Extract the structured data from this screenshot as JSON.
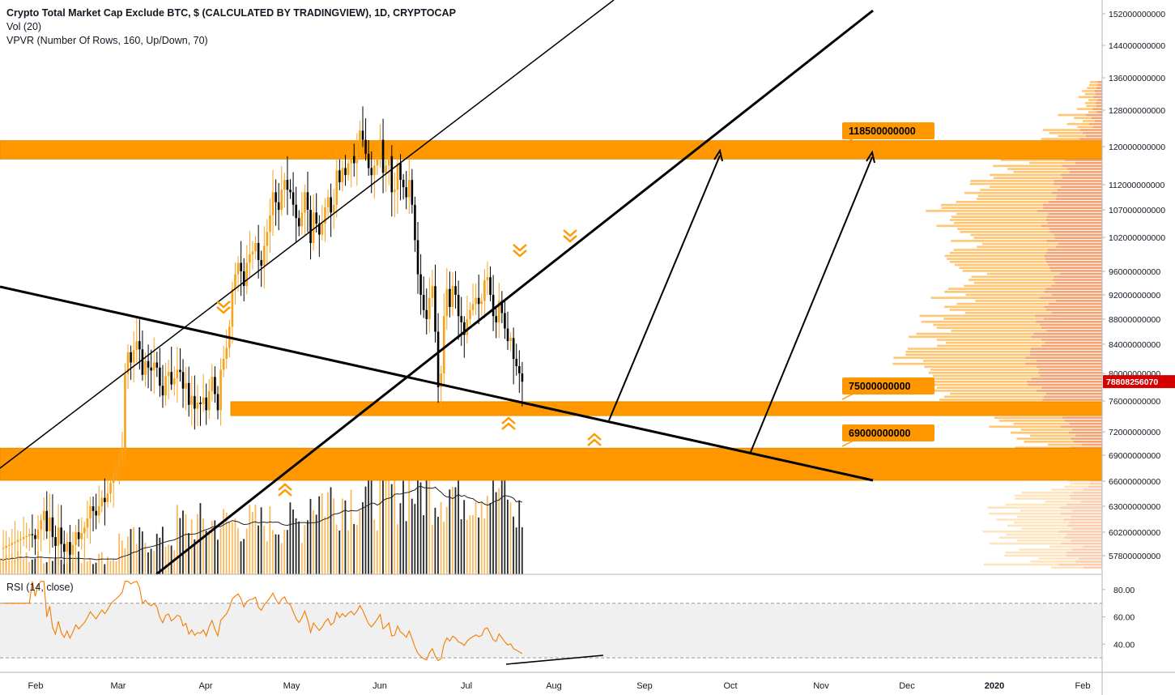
{
  "header": {
    "title": "Crypto Total Market Cap Exclude BTC, $ (CALCULATED BY TRADINGVIEW), 1D, CRYPTOCAP",
    "volume_indicator": "Vol (20)",
    "vpvr_indicator": "VPVR (Number Of Rows, 160, Up/Down, 70)",
    "rsi_indicator": "RSI (14, close)"
  },
  "colors": {
    "accent": "#ff9800",
    "zone_fill": "#ff9800",
    "candle_up": "#f7a21b",
    "candle_down": "#000000",
    "price_tag": "#d50000",
    "rsi_line": "#f57c00"
  },
  "chart_data": {
    "type": "candlestick",
    "price_axis_ticks": [
      "152000000000",
      "144000000000",
      "136000000000",
      "128000000000",
      "120000000000",
      "112000000000",
      "107000000000",
      "102000000000",
      "96000000000",
      "92000000000",
      "88000000000",
      "84000000000",
      "80000000000",
      "76000000000",
      "72000000000",
      "69000000000",
      "66000000000",
      "63000000000",
      "60200000000",
      "57800000000"
    ],
    "current_price": "78808256070",
    "levels": [
      {
        "label": "118500000000",
        "value": 118500000000
      },
      {
        "label": "75000000000",
        "value": 75000000000
      },
      {
        "label": "69000000000",
        "value": 69000000000
      }
    ],
    "x_labels": [
      "Feb",
      "Mar",
      "Apr",
      "May",
      "Jun",
      "Jul",
      "Aug",
      "Sep",
      "Oct",
      "Nov",
      "Dec",
      "2020",
      "Feb"
    ],
    "rsi_ticks": [
      "80.00",
      "60.00",
      "40.00"
    ],
    "rsi_band": [
      30,
      70
    ],
    "close_approx": [
      58.5,
      58.6,
      58.8,
      58.9,
      59.1,
      59.2,
      59.4,
      59.5,
      59.7,
      59.8,
      60.0,
      59.9,
      59.5,
      60.5,
      61.5,
      62.5,
      60.3,
      61.8,
      59.7,
      58.8,
      60.7,
      59.0,
      58.2,
      59.2,
      57.9,
      58.9,
      60.2,
      59.5,
      60.1,
      60.7,
      61.7,
      63.0,
      62.5,
      62.0,
      63.0,
      64.0,
      63.5,
      64.5,
      65.8,
      66.8,
      67.6,
      68.5,
      69.8,
      79.9,
      82.9,
      81.5,
      83.2,
      84.5,
      83.3,
      79.8,
      81.7,
      80.8,
      80.4,
      81.5,
      80.8,
      78.2,
      76.8,
      79.6,
      80.2,
      78.4,
      79.3,
      80.5,
      80.2,
      77.8,
      78.6,
      75.5,
      76.7,
      75.0,
      75.8,
      75.6,
      76.5,
      74.8,
      77.4,
      79.5,
      77.0,
      74.8,
      80.5,
      82.0,
      83.5,
      86.8,
      93.0,
      95.5,
      97.5,
      96.0,
      93.5,
      97.5,
      99.0,
      99.5,
      101.0,
      98.0,
      97.0,
      100.5,
      103.0,
      106.0,
      110.5,
      108.5,
      107.0,
      111.0,
      113.0,
      111.0,
      110.5,
      108.0,
      105.5,
      104.0,
      106.5,
      110.5,
      107.0,
      101.0,
      106.5,
      104.5,
      102.5,
      104.5,
      107.5,
      109.5,
      106.5,
      108.0,
      115.0,
      112.5,
      115.5,
      114.0,
      116.5,
      118.0,
      116.5,
      119.0,
      123.5,
      121.5,
      118.5,
      115.5,
      114.0,
      116.0,
      118.5,
      121.5,
      114.5,
      116.0,
      118.0,
      110.5,
      111.0,
      116.5,
      113.0,
      111.5,
      109.5,
      113.0,
      108.0,
      101.5,
      95.5,
      92.0,
      89.5,
      88.0,
      91.5,
      93.5,
      86.0,
      78.0,
      80.0,
      88.5,
      93.0,
      90.0,
      93.5,
      92.0,
      88.5,
      87.5,
      85.5,
      88.0,
      89.5,
      90.5,
      91.5,
      90.5,
      91.0,
      94.5,
      95.0,
      92.0,
      88.5,
      87.5,
      91.0,
      89.0,
      86.5,
      84.5,
      85.0,
      82.0,
      81.0,
      80.0,
      78.8
    ]
  }
}
